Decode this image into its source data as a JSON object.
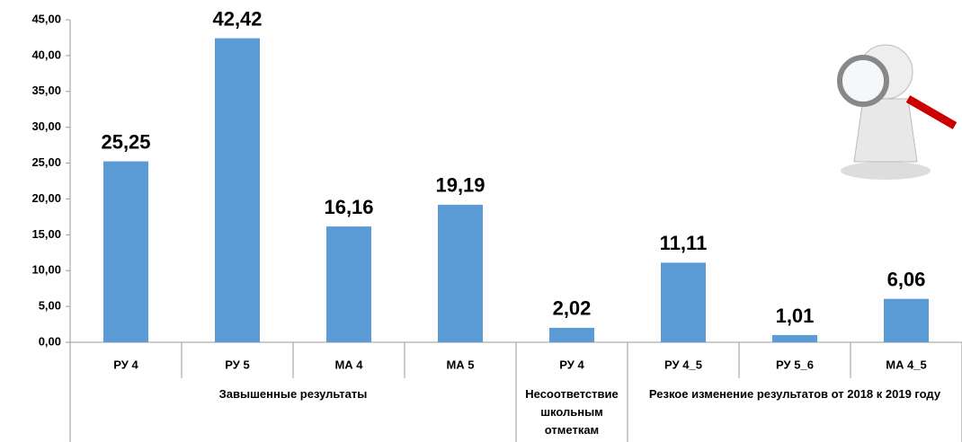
{
  "chart_data": {
    "type": "bar",
    "color": "#5b9bd5",
    "groups": [
      {
        "name": "Завышенные результаты",
        "categories": [
          "РУ 4",
          "РУ 5",
          "МА 4",
          "МА 5"
        ]
      },
      {
        "name": "Несоответствие школьным отметкам",
        "categories": [
          "РУ 4"
        ]
      },
      {
        "name": "Резкое изменение результатов от 2018 к 2019 году",
        "categories": [
          "РУ 4_5",
          "РУ 5_6",
          "МА 4_5"
        ]
      }
    ],
    "values": [
      25.25,
      42.42,
      16.16,
      19.19,
      2.02,
      11.11,
      1.01,
      6.06
    ],
    "value_labels": [
      "25,25",
      "42,42",
      "16,16",
      "19,19",
      "2,02",
      "11,11",
      "1,01",
      "6,06"
    ],
    "ylim": [
      0,
      45
    ],
    "yticks": [
      {
        "value": 0,
        "label": "0,00"
      },
      {
        "value": 5,
        "label": "5,00"
      },
      {
        "value": 10,
        "label": "10,00"
      },
      {
        "value": 15,
        "label": "15,00"
      },
      {
        "value": 20,
        "label": "20,00"
      },
      {
        "value": 25,
        "label": "25,00"
      },
      {
        "value": 30,
        "label": "30,00"
      },
      {
        "value": 35,
        "label": "35,00"
      },
      {
        "value": 40,
        "label": "40,00"
      },
      {
        "value": 45,
        "label": "45,00"
      }
    ],
    "grid": false
  }
}
